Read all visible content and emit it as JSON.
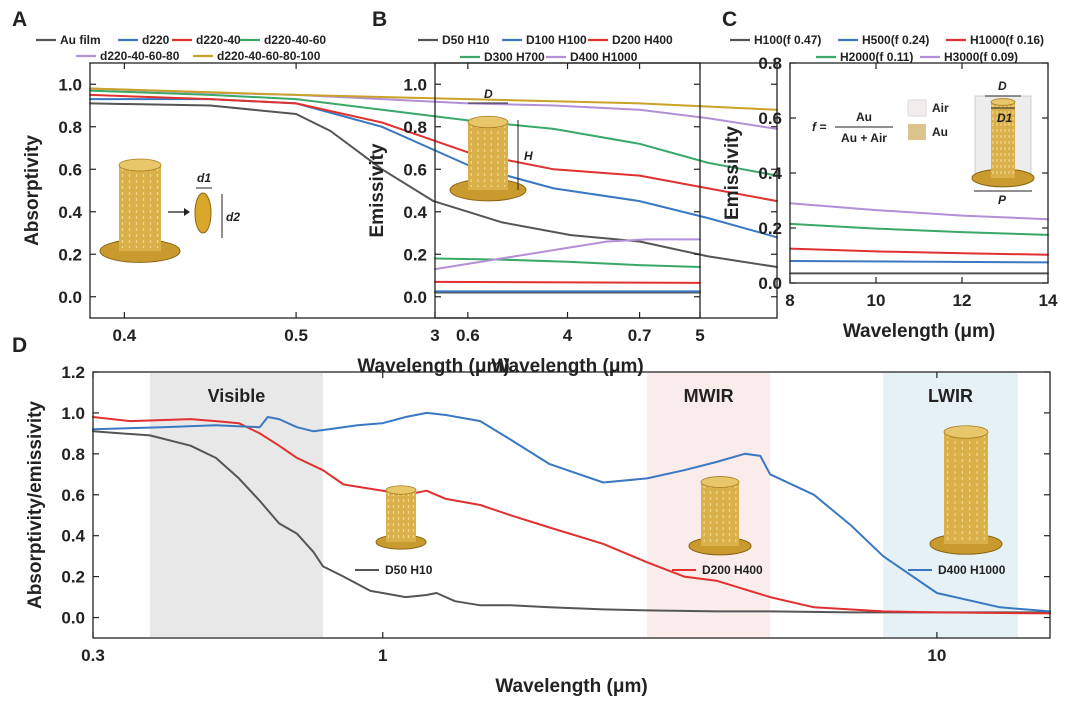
{
  "chart_data": [
    {
      "id": "A",
      "panel_label": "A",
      "type": "line",
      "xlabel": "Wavelength (μm)",
      "ylabel": "Absorptivity",
      "xlim": [
        0.38,
        0.78
      ],
      "ylim": [
        -0.1,
        1.1
      ],
      "xticks": [
        0.4,
        0.5,
        0.6,
        0.7
      ],
      "yticks": [
        0.0,
        0.2,
        0.4,
        0.6,
        0.8,
        1.0
      ],
      "legend": [
        {
          "name": "Au film"
        },
        {
          "name": "d220"
        },
        {
          "name": "d220-40"
        },
        {
          "name": "d220-40-60"
        },
        {
          "name": "d220-40-60-80"
        },
        {
          "name": "d220-40-60-80-100"
        }
      ],
      "annotations": [
        "d1",
        "d2"
      ],
      "series": [
        {
          "name": "Au film",
          "color": "#555555",
          "x": [
            0.38,
            0.45,
            0.5,
            0.52,
            0.55,
            0.58,
            0.62,
            0.66,
            0.7,
            0.74,
            0.78
          ],
          "y": [
            0.91,
            0.9,
            0.86,
            0.78,
            0.6,
            0.45,
            0.35,
            0.29,
            0.26,
            0.19,
            0.14
          ]
        },
        {
          "name": "d220",
          "color": "#3a78c2",
          "x": [
            0.38,
            0.45,
            0.5,
            0.55,
            0.6,
            0.65,
            0.7,
            0.74,
            0.78
          ],
          "y": [
            0.93,
            0.93,
            0.91,
            0.8,
            0.62,
            0.51,
            0.45,
            0.37,
            0.28
          ]
        },
        {
          "name": "d220-40",
          "color": "#e03030",
          "x": [
            0.38,
            0.45,
            0.5,
            0.55,
            0.6,
            0.65,
            0.7,
            0.74,
            0.78
          ],
          "y": [
            0.95,
            0.93,
            0.91,
            0.82,
            0.68,
            0.6,
            0.57,
            0.51,
            0.45
          ]
        },
        {
          "name": "d220-40-60",
          "color": "#3aa868",
          "x": [
            0.38,
            0.45,
            0.5,
            0.55,
            0.6,
            0.65,
            0.7,
            0.74,
            0.78
          ],
          "y": [
            0.97,
            0.95,
            0.93,
            0.88,
            0.83,
            0.79,
            0.72,
            0.63,
            0.57
          ]
        },
        {
          "name": "d220-40-60-80",
          "color": "#b28fd6",
          "x": [
            0.38,
            0.45,
            0.5,
            0.55,
            0.6,
            0.65,
            0.7,
            0.74,
            0.78
          ],
          "y": [
            0.98,
            0.96,
            0.95,
            0.93,
            0.91,
            0.9,
            0.88,
            0.84,
            0.79
          ]
        },
        {
          "name": "d220-40-60-80-100",
          "color": "#c9a227",
          "x": [
            0.38,
            0.5,
            0.6,
            0.7,
            0.78
          ],
          "y": [
            0.98,
            0.95,
            0.93,
            0.91,
            0.88
          ]
        }
      ]
    },
    {
      "id": "B",
      "panel_label": "B",
      "type": "line",
      "xlabel": "Wavelength (μm)",
      "ylabel": "Emissivity",
      "xlim": [
        3,
        5
      ],
      "ylim": [
        -0.1,
        1.1
      ],
      "xticks": [
        3,
        4,
        5
      ],
      "yticks": [
        0.0,
        0.2,
        0.4,
        0.6,
        0.8,
        1.0
      ],
      "legend": [
        {
          "name": "D50 H10"
        },
        {
          "name": "D100 H100"
        },
        {
          "name": "D200 H400"
        },
        {
          "name": "D300 H700"
        },
        {
          "name": "D400 H1000"
        }
      ],
      "annotations": [
        "D",
        "H"
      ],
      "series": [
        {
          "name": "D50 H10",
          "color": "#555555",
          "x": [
            3,
            5
          ],
          "y": [
            0.02,
            0.02
          ]
        },
        {
          "name": "D100 H100",
          "color": "#3a78c2",
          "x": [
            3,
            5
          ],
          "y": [
            0.025,
            0.025
          ]
        },
        {
          "name": "D200 H400",
          "color": "#e03030",
          "x": [
            3,
            5
          ],
          "y": [
            0.07,
            0.065
          ]
        },
        {
          "name": "D300 H700",
          "color": "#3aa868",
          "x": [
            3,
            3.5,
            4,
            4.5,
            5
          ],
          "y": [
            0.18,
            0.175,
            0.165,
            0.15,
            0.14
          ]
        },
        {
          "name": "D400 H1000",
          "color": "#b28fd6",
          "x": [
            3,
            3.3,
            3.6,
            4,
            4.3,
            4.6,
            5
          ],
          "y": [
            0.13,
            0.16,
            0.19,
            0.23,
            0.26,
            0.27,
            0.27
          ]
        }
      ]
    },
    {
      "id": "C",
      "panel_label": "C",
      "type": "line",
      "xlabel": "Wavelength (μm)",
      "ylabel": "Emissivity",
      "xlim": [
        8,
        14
      ],
      "ylim": [
        0,
        0.8
      ],
      "xticks": [
        8,
        10,
        12,
        14
      ],
      "yticks": [
        0.0,
        0.2,
        0.4,
        0.6,
        0.8
      ],
      "legend": [
        {
          "name": "H100(f 0.47)"
        },
        {
          "name": "H500(f 0.24)"
        },
        {
          "name": "H1000(f 0.16)"
        },
        {
          "name": "H2000(f 0.11)"
        },
        {
          "name": "H3000(f 0.09)"
        }
      ],
      "formula": {
        "lhs": "f =",
        "numerator": "Au",
        "denominator": "Au + Air"
      },
      "annotations": [
        "Air",
        "Au",
        "D",
        "D1",
        "P"
      ],
      "series": [
        {
          "name": "H100(f 0.47)",
          "color": "#555555",
          "x": [
            8,
            14
          ],
          "y": [
            0.035,
            0.035
          ]
        },
        {
          "name": "H500(f 0.24)",
          "color": "#3a78c2",
          "x": [
            8,
            14
          ],
          "y": [
            0.08,
            0.075
          ]
        },
        {
          "name": "H1000(f 0.16)",
          "color": "#e03030",
          "x": [
            8,
            10,
            12,
            14
          ],
          "y": [
            0.125,
            0.115,
            0.108,
            0.103
          ]
        },
        {
          "name": "H2000(f 0.11)",
          "color": "#3aa868",
          "x": [
            8,
            10,
            12,
            14
          ],
          "y": [
            0.215,
            0.198,
            0.185,
            0.175
          ]
        },
        {
          "name": "H3000(f 0.09)",
          "color": "#b28fd6",
          "x": [
            8,
            10,
            12,
            14
          ],
          "y": [
            0.29,
            0.265,
            0.245,
            0.232
          ]
        }
      ]
    },
    {
      "id": "D",
      "panel_label": "D",
      "type": "line",
      "xscale": "log",
      "xlabel": "Wavelength (μm)",
      "ylabel": "Absorptivity/emissivity",
      "xlim": [
        0.3,
        16
      ],
      "ylim": [
        -0.1,
        1.2
      ],
      "xticks": [
        0.3,
        1,
        10
      ],
      "yticks": [
        0.0,
        0.2,
        0.4,
        0.6,
        0.8,
        1.0,
        1.2
      ],
      "regions": [
        {
          "name": "Visible",
          "x0": 0.38,
          "x1": 0.78,
          "color": "#e8e8e8"
        },
        {
          "name": "MWIR",
          "x0": 3,
          "x1": 5,
          "color": "#fbecec"
        },
        {
          "name": "LWIR",
          "x0": 8,
          "x1": 14,
          "color": "#e6f1f5"
        }
      ],
      "series": [
        {
          "name": "D50 H10",
          "color": "#555555",
          "x": [
            0.3,
            0.38,
            0.45,
            0.5,
            0.55,
            0.6,
            0.65,
            0.7,
            0.75,
            0.78,
            0.85,
            0.95,
            1.0,
            1.1,
            1.2,
            1.25,
            1.35,
            1.5,
            1.7,
            2.0,
            2.5,
            3,
            4,
            5,
            7,
            10,
            16
          ],
          "y": [
            0.91,
            0.89,
            0.84,
            0.78,
            0.68,
            0.57,
            0.46,
            0.41,
            0.32,
            0.25,
            0.2,
            0.13,
            0.12,
            0.1,
            0.11,
            0.12,
            0.08,
            0.06,
            0.06,
            0.05,
            0.04,
            0.035,
            0.03,
            0.03,
            0.025,
            0.025,
            0.025
          ]
        },
        {
          "name": "D200 H400",
          "color": "#e03030",
          "x": [
            0.3,
            0.35,
            0.45,
            0.5,
            0.55,
            0.6,
            0.65,
            0.7,
            0.78,
            0.85,
            1.0,
            1.1,
            1.2,
            1.3,
            1.5,
            1.7,
            2.0,
            2.5,
            3,
            3.5,
            4,
            5,
            6,
            8,
            10,
            16
          ],
          "y": [
            0.98,
            0.96,
            0.97,
            0.96,
            0.95,
            0.9,
            0.84,
            0.78,
            0.72,
            0.65,
            0.62,
            0.6,
            0.62,
            0.58,
            0.55,
            0.5,
            0.44,
            0.36,
            0.27,
            0.2,
            0.18,
            0.1,
            0.05,
            0.03,
            0.025,
            0.02
          ]
        },
        {
          "name": "D400 H1000",
          "color": "#3a78c2",
          "x": [
            0.3,
            0.4,
            0.5,
            0.6,
            0.62,
            0.65,
            0.7,
            0.75,
            0.8,
            0.9,
            1.0,
            1.1,
            1.2,
            1.3,
            1.5,
            1.7,
            2.0,
            2.5,
            3,
            3.5,
            4,
            4.5,
            4.8,
            5,
            6,
            7,
            8,
            10,
            13,
            16
          ],
          "y": [
            0.92,
            0.93,
            0.94,
            0.93,
            0.98,
            0.97,
            0.93,
            0.91,
            0.92,
            0.94,
            0.95,
            0.98,
            1.0,
            0.99,
            0.96,
            0.87,
            0.75,
            0.66,
            0.68,
            0.72,
            0.76,
            0.8,
            0.79,
            0.7,
            0.6,
            0.45,
            0.3,
            0.12,
            0.05,
            0.03
          ]
        }
      ],
      "labels": [
        "D50 H10",
        "D200 H400",
        "D400 H1000"
      ]
    }
  ]
}
